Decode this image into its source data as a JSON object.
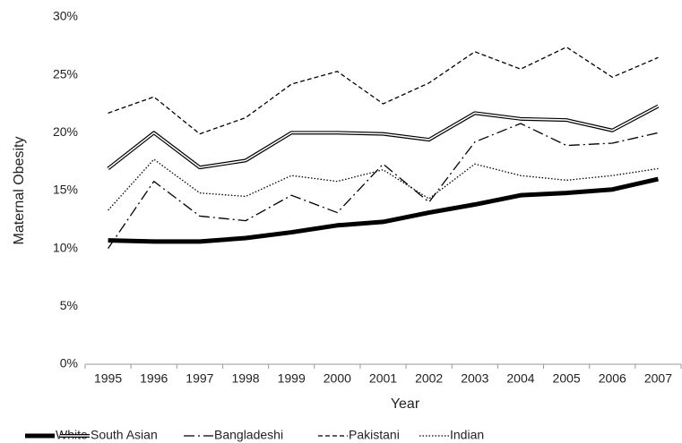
{
  "chart_data": {
    "type": "line",
    "x_label": "Year",
    "y_label": "Maternal Obesity",
    "categories": [
      "1995",
      "1996",
      "1997",
      "1998",
      "1999",
      "2000",
      "2001",
      "2002",
      "2003",
      "2004",
      "2005",
      "2006",
      "2007"
    ],
    "series": [
      {
        "name": "White",
        "color": "#000000",
        "width": 5,
        "dash": "none",
        "values": [
          10.7,
          10.6,
          10.6,
          10.9,
          11.4,
          12.0,
          12.3,
          13.1,
          13.8,
          14.6,
          14.8,
          15.1,
          16.0
        ]
      },
      {
        "name": "South Asian",
        "color": "#000000",
        "width": 4,
        "dash": "none",
        "style": "double",
        "values": [
          16.9,
          20.0,
          17.0,
          17.6,
          20.0,
          20.0,
          19.9,
          19.4,
          21.7,
          21.2,
          21.1,
          20.2,
          22.3
        ]
      },
      {
        "name": "Bangladeshi",
        "color": "#000000",
        "width": 1.3,
        "dash": "12 4 2 4",
        "values": [
          10.0,
          15.8,
          12.8,
          12.4,
          14.6,
          13.1,
          17.3,
          14.0,
          19.2,
          20.8,
          18.9,
          19.1,
          20.0
        ]
      },
      {
        "name": "Pakistani",
        "color": "#000000",
        "width": 1.3,
        "dash": "5 3",
        "values": [
          21.7,
          23.1,
          19.9,
          21.3,
          24.2,
          25.3,
          22.5,
          24.3,
          27.0,
          25.5,
          27.4,
          24.8,
          26.5
        ]
      },
      {
        "name": "Indian",
        "color": "#000000",
        "width": 1.3,
        "dash": "1.5 2",
        "values": [
          13.3,
          17.7,
          14.8,
          14.5,
          16.3,
          15.8,
          16.8,
          14.3,
          17.3,
          16.3,
          15.9,
          16.3,
          16.9
        ]
      }
    ],
    "ylim": [
      0,
      30
    ],
    "yticks": [
      {
        "value": 0,
        "label": "0%"
      },
      {
        "value": 5,
        "label": "5%"
      },
      {
        "value": 10,
        "label": "10%"
      },
      {
        "value": 15,
        "label": "15%"
      },
      {
        "value": 20,
        "label": "20%"
      },
      {
        "value": 25,
        "label": "25%"
      },
      {
        "value": 30,
        "label": "30%"
      }
    ],
    "grid": false,
    "legend": "bottom"
  }
}
